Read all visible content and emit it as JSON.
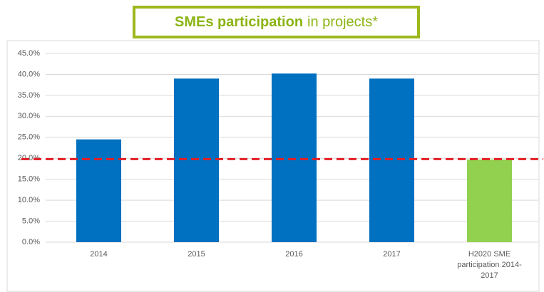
{
  "chart_data": {
    "type": "bar",
    "title": {
      "bold": "SMEs participation",
      "rest": "in projects*"
    },
    "categories": [
      "2014",
      "2015",
      "2016",
      "2017",
      "H2020 SME participation 2014-2017"
    ],
    "values": [
      24.5,
      39.0,
      40.2,
      39.0,
      19.7
    ],
    "colors": [
      "#0070c0",
      "#0070c0",
      "#0070c0",
      "#0070c0",
      "#92d050"
    ],
    "reference_line": {
      "value": 19.8,
      "color": "#e31e24"
    },
    "ylim": [
      0,
      45
    ],
    "yticks": [
      {
        "value": 0,
        "label": "0.0%"
      },
      {
        "value": 5,
        "label": "5.0%"
      },
      {
        "value": 10,
        "label": "10.0%"
      },
      {
        "value": 15,
        "label": "15.0%"
      },
      {
        "value": 20,
        "label": "20.0%"
      },
      {
        "value": 25,
        "label": "25.0%"
      },
      {
        "value": 30,
        "label": "30.0%"
      },
      {
        "value": 35,
        "label": "35.0%"
      },
      {
        "value": 40,
        "label": "40.0%"
      },
      {
        "value": 45,
        "label": "45.0%"
      }
    ],
    "grid": true
  }
}
